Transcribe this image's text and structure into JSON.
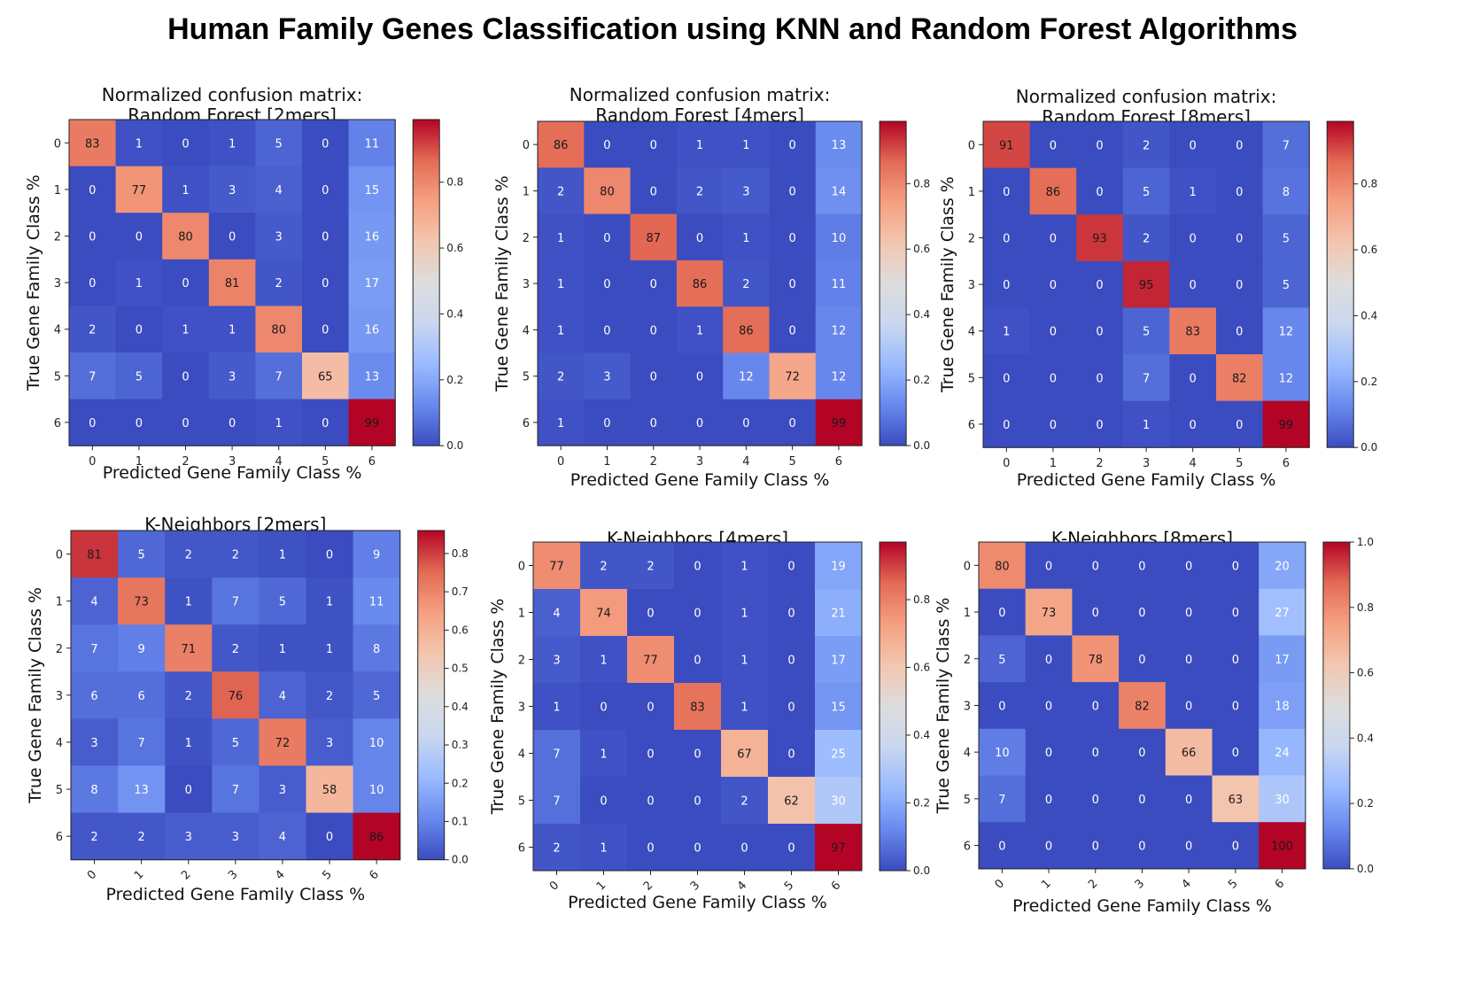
{
  "page_title": "Human Family Genes Classification using KNN and Random Forest Algorithms",
  "colormap": [
    "#3b4cc0",
    "#6889ee",
    "#9abbff",
    "#c9d7f0",
    "#dddddd",
    "#f3c6b0",
    "#f5a081",
    "#e36b55",
    "#b40426"
  ],
  "chart_data": [
    {
      "type": "heatmap",
      "title_lines": [
        "Normalized confusion matrix:",
        "Random Forest [2mers]"
      ],
      "xlabel": "Predicted Gene Family Class %",
      "ylabel": "True Gene Family Class %",
      "x_ticks": [
        "0",
        "1",
        "2",
        "3",
        "4",
        "5",
        "6"
      ],
      "y_ticks": [
        "0",
        "1",
        "2",
        "3",
        "4",
        "5",
        "6"
      ],
      "x_tick_rotation": 0,
      "colorbar": {
        "vmin": 0.0,
        "vmax": 0.99,
        "ticks": [
          "0.0",
          "0.2",
          "0.4",
          "0.6",
          "0.8"
        ]
      },
      "matrix": [
        [
          83,
          1,
          0,
          1,
          5,
          0,
          11
        ],
        [
          0,
          77,
          1,
          3,
          4,
          0,
          15
        ],
        [
          0,
          0,
          80,
          0,
          3,
          0,
          16
        ],
        [
          0,
          1,
          0,
          81,
          2,
          0,
          17
        ],
        [
          2,
          0,
          1,
          1,
          80,
          0,
          16
        ],
        [
          7,
          5,
          0,
          3,
          7,
          65,
          13
        ],
        [
          0,
          0,
          0,
          0,
          1,
          0,
          99
        ]
      ]
    },
    {
      "type": "heatmap",
      "title_lines": [
        "Normalized confusion matrix:",
        "Random Forest [4mers]"
      ],
      "xlabel": "Predicted Gene Family Class %",
      "ylabel": "True Gene Family Class %",
      "x_ticks": [
        "0",
        "1",
        "2",
        "3",
        "4",
        "5",
        "6"
      ],
      "y_ticks": [
        "0",
        "1",
        "2",
        "3",
        "4",
        "5",
        "6"
      ],
      "x_tick_rotation": 0,
      "colorbar": {
        "vmin": 0.0,
        "vmax": 0.99,
        "ticks": [
          "0.0",
          "0.2",
          "0.4",
          "0.6",
          "0.8"
        ]
      },
      "matrix": [
        [
          86,
          0,
          0,
          1,
          1,
          0,
          13
        ],
        [
          2,
          80,
          0,
          2,
          3,
          0,
          14
        ],
        [
          1,
          0,
          87,
          0,
          1,
          0,
          10
        ],
        [
          1,
          0,
          0,
          86,
          2,
          0,
          11
        ],
        [
          1,
          0,
          0,
          1,
          86,
          0,
          12
        ],
        [
          2,
          3,
          0,
          0,
          12,
          72,
          12
        ],
        [
          1,
          0,
          0,
          0,
          0,
          0,
          99
        ]
      ]
    },
    {
      "type": "heatmap",
      "title_lines": [
        "Normalized confusion matrix:",
        "Random Forest [8mers]"
      ],
      "xlabel": "Predicted Gene Family Class %",
      "ylabel": "True Gene Family Class %",
      "x_ticks": [
        "0",
        "1",
        "2",
        "3",
        "4",
        "5",
        "6"
      ],
      "y_ticks": [
        "0",
        "1",
        "2",
        "3",
        "4",
        "5",
        "6"
      ],
      "x_tick_rotation": 0,
      "colorbar": {
        "vmin": 0.0,
        "vmax": 0.99,
        "ticks": [
          "0.0",
          "0.2",
          "0.4",
          "0.6",
          "0.8"
        ]
      },
      "matrix": [
        [
          91,
          0,
          0,
          2,
          0,
          0,
          7
        ],
        [
          0,
          86,
          0,
          5,
          1,
          0,
          8
        ],
        [
          0,
          0,
          93,
          2,
          0,
          0,
          5
        ],
        [
          0,
          0,
          0,
          95,
          0,
          0,
          5
        ],
        [
          1,
          0,
          0,
          5,
          83,
          0,
          12
        ],
        [
          0,
          0,
          0,
          7,
          0,
          82,
          12
        ],
        [
          0,
          0,
          0,
          1,
          0,
          0,
          99
        ]
      ]
    },
    {
      "type": "heatmap",
      "title_lines": [
        "K-Neighbors [2mers]"
      ],
      "xlabel": "Predicted Gene Family Class %",
      "ylabel": "True Gene Family Class %",
      "x_ticks": [
        "0",
        "1",
        "2",
        "3",
        "4",
        "5",
        "6"
      ],
      "y_ticks": [
        "0",
        "1",
        "2",
        "3",
        "4",
        "5",
        "6"
      ],
      "x_tick_rotation": -45,
      "colorbar": {
        "vmin": 0.0,
        "vmax": 0.86,
        "ticks": [
          "0.0",
          "0.1",
          "0.2",
          "0.3",
          "0.4",
          "0.5",
          "0.6",
          "0.7",
          "0.8"
        ]
      },
      "matrix": [
        [
          81,
          5,
          2,
          2,
          1,
          0,
          9
        ],
        [
          4,
          73,
          1,
          7,
          5,
          1,
          11
        ],
        [
          7,
          9,
          71,
          2,
          1,
          1,
          8
        ],
        [
          6,
          6,
          2,
          76,
          4,
          2,
          5
        ],
        [
          3,
          7,
          1,
          5,
          72,
          3,
          10
        ],
        [
          8,
          13,
          0,
          7,
          3,
          58,
          10
        ],
        [
          2,
          2,
          3,
          3,
          4,
          0,
          86
        ]
      ]
    },
    {
      "type": "heatmap",
      "title_lines": [
        "K-Neighbors [4mers]"
      ],
      "xlabel": "Predicted Gene Family Class %",
      "ylabel": "True Gene Family Class %",
      "x_ticks": [
        "0",
        "1",
        "2",
        "3",
        "4",
        "5",
        "6"
      ],
      "y_ticks": [
        "0",
        "1",
        "2",
        "3",
        "4",
        "5",
        "6"
      ],
      "x_tick_rotation": -45,
      "colorbar": {
        "vmin": 0.0,
        "vmax": 0.97,
        "ticks": [
          "0.0",
          "0.2",
          "0.4",
          "0.6",
          "0.8"
        ]
      },
      "matrix": [
        [
          77,
          2,
          2,
          0,
          1,
          0,
          19
        ],
        [
          4,
          74,
          0,
          0,
          1,
          0,
          21
        ],
        [
          3,
          1,
          77,
          0,
          1,
          0,
          17
        ],
        [
          1,
          0,
          0,
          83,
          1,
          0,
          15
        ],
        [
          7,
          1,
          0,
          0,
          67,
          0,
          25
        ],
        [
          7,
          0,
          0,
          0,
          2,
          62,
          30
        ],
        [
          2,
          1,
          0,
          0,
          0,
          0,
          97
        ]
      ]
    },
    {
      "type": "heatmap",
      "title_lines": [
        "K-Neighbors [8mers]"
      ],
      "xlabel": "Predicted Gene Family Class %",
      "ylabel": "True Gene Family Class %",
      "x_ticks": [
        "0",
        "1",
        "2",
        "3",
        "4",
        "5",
        "6"
      ],
      "y_ticks": [
        "0",
        "1",
        "2",
        "3",
        "4",
        "5",
        "6"
      ],
      "x_tick_rotation": -45,
      "colorbar": {
        "vmin": 0.0,
        "vmax": 1.0,
        "ticks": [
          "0.0",
          "0.2",
          "0.4",
          "0.6",
          "0.8",
          "1.0"
        ]
      },
      "matrix": [
        [
          80,
          0,
          0,
          0,
          0,
          0,
          20
        ],
        [
          0,
          73,
          0,
          0,
          0,
          0,
          27
        ],
        [
          5,
          0,
          78,
          0,
          0,
          0,
          17
        ],
        [
          0,
          0,
          0,
          82,
          0,
          0,
          18
        ],
        [
          10,
          0,
          0,
          0,
          66,
          0,
          24
        ],
        [
          7,
          0,
          0,
          0,
          0,
          63,
          30
        ],
        [
          0,
          0,
          0,
          0,
          0,
          0,
          100
        ]
      ]
    }
  ]
}
